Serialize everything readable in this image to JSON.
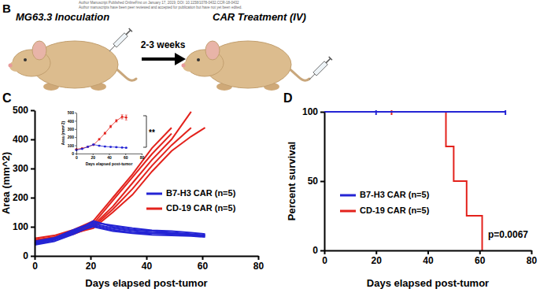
{
  "schematic": {
    "panel": "B",
    "watermark": [
      "Author Manuscript Published OnlineFirst on January 17, 2019; DOI: 10.1158/1078-0432.CCR-18-0432",
      "Author manuscripts have been peer reviewed and accepted for publication but have not yet been edited."
    ],
    "left_label": "MG63.3 Inoculation",
    "arrow_label": "2-3 weeks",
    "right_label": "CAR Treatment (IV)"
  },
  "chart_data": [
    {
      "type": "line",
      "annotations": [
        "C"
      ],
      "x_label": "Days elapsed post-tumor",
      "y_label": "Area (mm^2)",
      "x": [
        0,
        7,
        14,
        21,
        28,
        35,
        42,
        49,
        56,
        61
      ],
      "xlim": [
        0,
        80
      ],
      "xticks": [
        0,
        20,
        40,
        60,
        80
      ],
      "ylim": [
        0,
        500
      ],
      "yticks": [
        0,
        100,
        200,
        300,
        400,
        500
      ],
      "legend": "center",
      "series": [
        {
          "name": "B7-H3 CAR (n=5)",
          "color": "#2424d4",
          "values": [
            [
              40,
              55,
              80,
              120,
              100,
              90,
              85,
              80,
              75,
              70
            ],
            [
              45,
              60,
              85,
              110,
              95,
              85,
              80,
              78,
              72,
              68
            ],
            [
              38,
              50,
              75,
              105,
              90,
              80,
              78,
              75,
              70,
              72
            ],
            [
              50,
              62,
              90,
              115,
              105,
              95,
              88,
              85,
              80,
              75
            ],
            [
              42,
              56,
              82,
              100,
              85,
              78,
              72,
              70,
              68,
              65
            ]
          ]
        },
        {
          "name": "CD-19 CAR (n=5)",
          "color": "#e3221c",
          "values": [
            [
              50,
              60,
              80,
              110,
              190,
              270,
              350,
              420,
              null,
              null
            ],
            [
              55,
              65,
              85,
              105,
              170,
              250,
              330,
              400,
              495,
              null
            ],
            [
              45,
              58,
              75,
              100,
              160,
              230,
              310,
              380,
              440,
              null
            ],
            [
              60,
              70,
              90,
              120,
              200,
              280,
              370,
              440,
              null,
              null
            ],
            [
              52,
              62,
              78,
              95,
              150,
              210,
              290,
              360,
              410,
              440
            ]
          ]
        }
      ]
    },
    {
      "type": "line",
      "annotations": [
        "**"
      ],
      "x_label": "Days elapsed post-tumor",
      "y_label": "Area (mm^2)",
      "x": [
        0,
        7,
        14,
        21,
        28,
        35,
        42,
        49,
        56,
        61
      ],
      "xlim": [
        0,
        80
      ],
      "xticks": [
        0,
        20,
        40,
        60,
        80
      ],
      "ylim": [
        0,
        500
      ],
      "yticks": [
        0,
        100,
        200,
        300,
        400,
        500
      ],
      "marker": "circle",
      "series": [
        {
          "color": "#2424d4",
          "values": [
            43,
            57,
            82,
            110,
            95,
            86,
            81,
            78,
            73,
            70
          ],
          "errors": [
            2,
            2,
            3,
            4,
            4,
            3,
            3,
            3,
            2,
            2
          ]
        },
        {
          "color": "#e3221c",
          "values": [
            52,
            63,
            82,
            106,
            174,
            248,
            330,
            400,
            448,
            440
          ],
          "errors": [
            3,
            3,
            3,
            4,
            8,
            12,
            14,
            15,
            25,
            30
          ]
        }
      ]
    },
    {
      "type": "line",
      "line_style": "step",
      "annotations": [
        "D",
        "p=0.0067"
      ],
      "x_label": "Days elapsed post-tumor",
      "y_label": "Percent survival",
      "xlim": [
        0,
        80
      ],
      "xticks": [
        0,
        20,
        40,
        60,
        80
      ],
      "ylim": [
        0,
        100
      ],
      "yticks": [
        0,
        50,
        100
      ],
      "legend": "center",
      "series": [
        {
          "name": "B7-H3 CAR (n=5)",
          "color": "#2424d4",
          "x": [
            0,
            70
          ],
          "values": [
            100,
            100
          ],
          "censored": [
            20,
            70
          ]
        },
        {
          "name": "CD-19 CAR (n=5)",
          "color": "#e3221c",
          "x": [
            0,
            47,
            50,
            55,
            61
          ],
          "values": [
            100,
            75,
            50,
            25,
            0
          ],
          "censored": [
            26
          ]
        }
      ]
    }
  ]
}
